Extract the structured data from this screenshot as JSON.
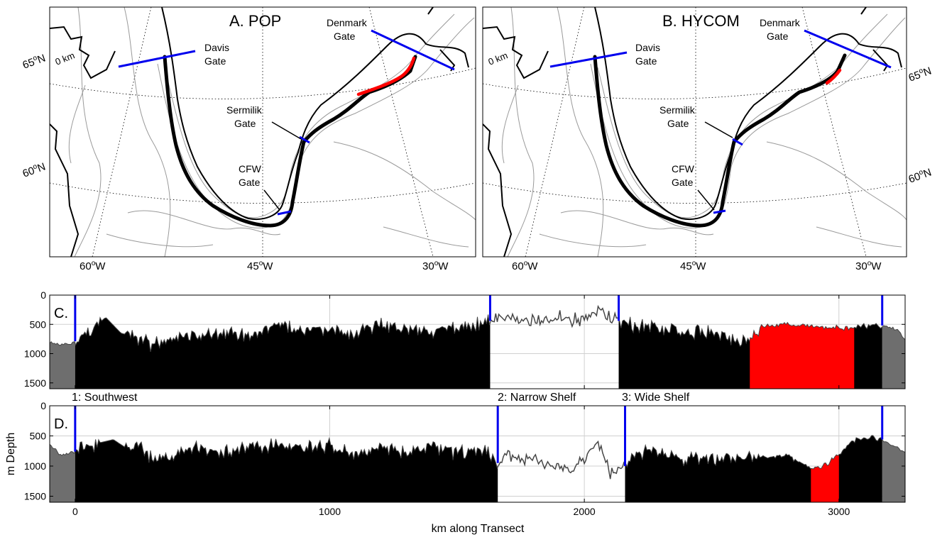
{
  "colors": {
    "gate": "#0000ee",
    "highlight": "#ff0000",
    "transect": "#000000",
    "outside": "#6e6e6e",
    "coast": "#000000",
    "contour": "#9a9a9a",
    "grid": "#d0d0d0"
  },
  "maps": [
    {
      "panel": "A. POP",
      "lat_labels": [
        "65",
        "60"
      ],
      "lon_labels": [
        "60",
        "45",
        "30"
      ],
      "km_label": "0 km",
      "gates": {
        "davis": [
          "Davis",
          "Gate"
        ],
        "denmark": [
          "Denmark",
          "Gate"
        ],
        "sermilik": [
          "Sermilik",
          "Gate"
        ],
        "cfw": [
          "CFW",
          "Gate"
        ]
      }
    },
    {
      "panel": "B. HYCOM",
      "lat_labels": [
        "65",
        "60"
      ],
      "lon_labels": [
        "60",
        "45",
        "30"
      ],
      "km_label": "0 km",
      "gates": {
        "davis": [
          "Davis",
          "Gate"
        ],
        "denmark": [
          "Denmark",
          "Gate"
        ],
        "sermilik": [
          "Sermilik",
          "Gate"
        ],
        "cfw": [
          "CFW",
          "Gate"
        ]
      }
    }
  ],
  "region_labels": [
    "1: Southwest",
    "2: Narrow Shelf",
    "3: Wide Shelf"
  ],
  "chart_data": [
    {
      "type": "area",
      "panel": "C.",
      "xlim": [
        -100,
        3260
      ],
      "ylim": [
        1600,
        0
      ],
      "xticks": [
        0,
        1000,
        2000,
        3000
      ],
      "yticks": [
        0,
        500,
        1000,
        1500
      ],
      "gates_km": [
        0,
        1630,
        2135,
        3170
      ],
      "highlight_km": [
        2650,
        3060
      ],
      "depth_profile": {
        "x": [
          -100,
          -60,
          -20,
          0,
          60,
          120,
          180,
          240,
          300,
          400,
          500,
          600,
          700,
          800,
          900,
          1000,
          1100,
          1200,
          1300,
          1400,
          1500,
          1630,
          1700,
          1800,
          1900,
          2000,
          2060,
          2100,
          2135,
          2200,
          2300,
          2400,
          2500,
          2600,
          2650,
          2700,
          2800,
          2900,
          3000,
          3060,
          3100,
          3170,
          3230,
          3260
        ],
        "y": [
          800,
          860,
          840,
          790,
          600,
          380,
          650,
          720,
          850,
          700,
          720,
          650,
          700,
          480,
          620,
          600,
          640,
          500,
          560,
          600,
          580,
          440,
          400,
          460,
          380,
          430,
          250,
          420,
          440,
          520,
          560,
          620,
          640,
          760,
          720,
          540,
          500,
          530,
          560,
          550,
          530,
          520,
          600,
          740
        ]
      }
    },
    {
      "type": "area",
      "panel": "D.",
      "xlabel": "km along Transect",
      "ylabel": "m Depth",
      "xlim": [
        -100,
        3260
      ],
      "ylim": [
        1600,
        0
      ],
      "xticks": [
        0,
        1000,
        2000,
        3000
      ],
      "yticks": [
        0,
        500,
        1000,
        1500
      ],
      "gates_km": [
        0,
        1660,
        2160,
        3170
      ],
      "highlight_km": [
        2890,
        3000
      ],
      "depth_profile": {
        "x": [
          -100,
          -60,
          -20,
          0,
          60,
          150,
          200,
          260,
          300,
          400,
          500,
          600,
          700,
          800,
          900,
          1000,
          1100,
          1200,
          1300,
          1400,
          1500,
          1600,
          1660,
          1700,
          1800,
          1900,
          1950,
          2000,
          2050,
          2100,
          2160,
          2200,
          2300,
          2400,
          2500,
          2600,
          2700,
          2800,
          2890,
          2950,
          3000,
          3050,
          3100,
          3170,
          3230,
          3260
        ],
        "y": [
          620,
          820,
          790,
          760,
          650,
          560,
          700,
          620,
          900,
          760,
          700,
          780,
          650,
          680,
          700,
          650,
          820,
          700,
          760,
          650,
          800,
          700,
          950,
          800,
          900,
          1000,
          1100,
          900,
          600,
          1100,
          1000,
          800,
          750,
          900,
          850,
          900,
          850,
          820,
          1050,
          980,
          800,
          600,
          520,
          560,
          700,
          760
        ]
      }
    }
  ]
}
